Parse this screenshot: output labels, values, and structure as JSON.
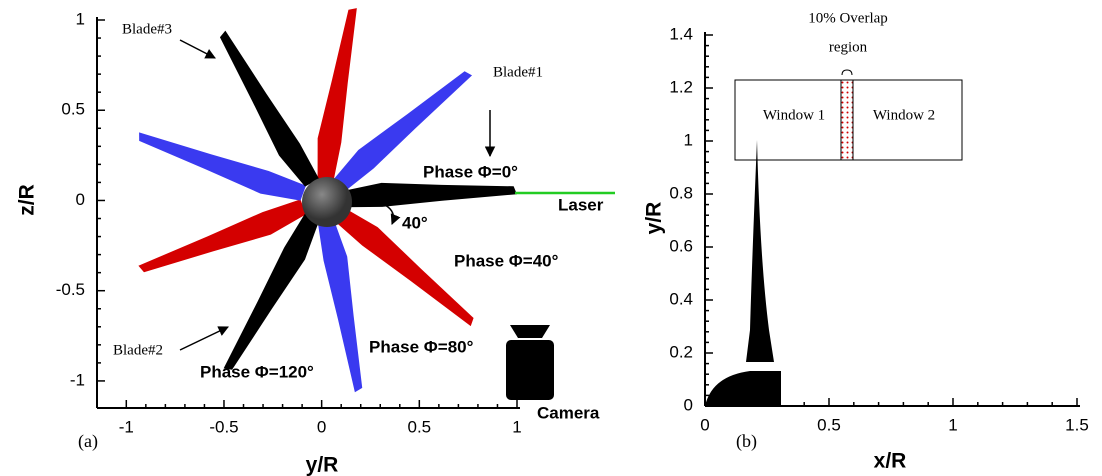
{
  "chart_data": [
    {
      "type": "diagram",
      "xlabel": "y/R",
      "ylabel": "z/R",
      "xlim": [
        -1.15,
        1
      ],
      "ylim": [
        -1.15,
        1
      ],
      "xticks": [
        -1,
        -0.5,
        0,
        0.5,
        1
      ],
      "yticks": [
        -1,
        -0.5,
        0,
        0.5,
        1
      ],
      "panel_label": "(a)",
      "blade_labels": [
        "Blade#1",
        "Blade#2",
        "Blade#3"
      ],
      "phase_labels": [
        {
          "text": "Phase Φ=0°",
          "color": "#000000"
        },
        {
          "text": "Phase Φ=40°",
          "color": "#d40000"
        },
        {
          "text": "Phase Φ=80°",
          "color": "#3a3af0"
        },
        {
          "text": "Phase Φ=120°",
          "color": "#000000"
        }
      ],
      "angle_label": "40°",
      "laser_label": "Laser",
      "laser_color": "#22cc22",
      "camera_label": "Camera"
    },
    {
      "type": "diagram",
      "xlabel": "x/R",
      "ylabel": "y/R",
      "xlim": [
        0,
        1.5
      ],
      "ylim": [
        0,
        1.4
      ],
      "xticks": [
        0,
        0.5,
        1,
        1.5
      ],
      "yticks": [
        0,
        0.2,
        0.4,
        0.6,
        0.8,
        1,
        1.2,
        1.4
      ],
      "panel_label": "(b)",
      "window_labels": [
        "Window 1",
        "Window 2"
      ],
      "overlap_label": [
        "10% Overlap",
        "region"
      ]
    }
  ]
}
